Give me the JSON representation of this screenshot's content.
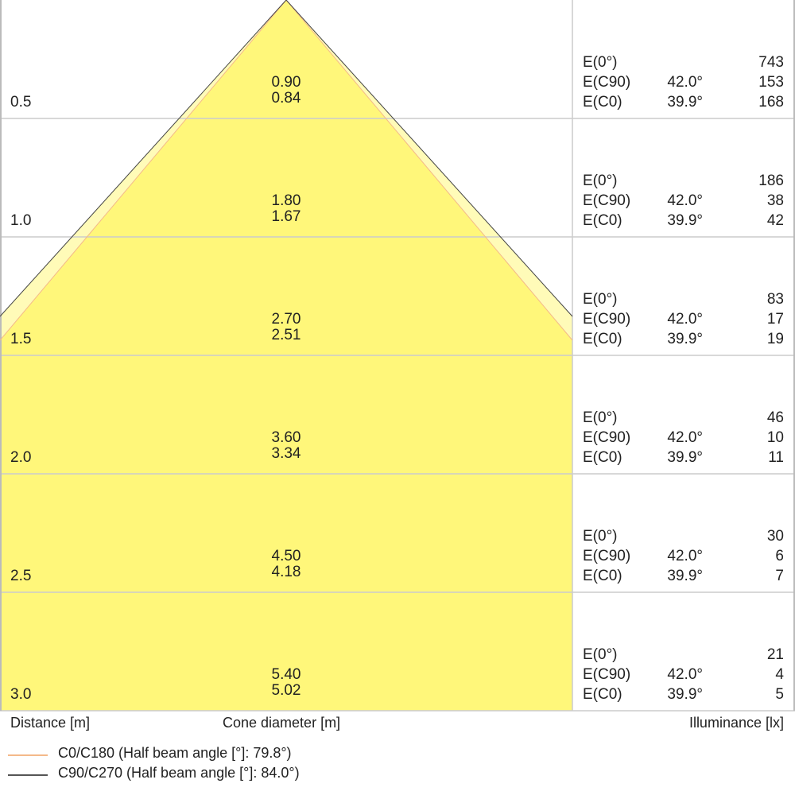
{
  "chart_data": {
    "type": "cone-diagram",
    "footer_labels": {
      "distance": "Distance [m]",
      "cone": "Cone diameter [m]",
      "illuminance": "Illuminance [lx]"
    },
    "legend": [
      {
        "label": "C0/C180 (Half beam angle [°]: 79.8°)",
        "color": "#f4b98a"
      },
      {
        "label": "C90/C270 (Half beam angle [°]: 84.0°)",
        "color": "#555555"
      }
    ],
    "colors": {
      "fill": "#fff77a",
      "band": "#fffbb8",
      "grid": "#cccccc"
    },
    "e_labels": [
      "E(0°)",
      "E(C90)",
      "E(C0)"
    ],
    "rows": [
      {
        "distance": "0.5",
        "d_c90": "0.90",
        "d_c0": "0.84",
        "angle_c90": "42.0°",
        "angle_c0": "39.9°",
        "e0": "743",
        "ec90": "153",
        "ec0": "168"
      },
      {
        "distance": "1.0",
        "d_c90": "1.80",
        "d_c0": "1.67",
        "angle_c90": "42.0°",
        "angle_c0": "39.9°",
        "e0": "186",
        "ec90": "38",
        "ec0": "42"
      },
      {
        "distance": "1.5",
        "d_c90": "2.70",
        "d_c0": "2.51",
        "angle_c90": "42.0°",
        "angle_c0": "39.9°",
        "e0": "83",
        "ec90": "17",
        "ec0": "19"
      },
      {
        "distance": "2.0",
        "d_c90": "3.60",
        "d_c0": "3.34",
        "angle_c90": "42.0°",
        "angle_c0": "39.9°",
        "e0": "46",
        "ec90": "10",
        "ec0": "11"
      },
      {
        "distance": "2.5",
        "d_c90": "4.50",
        "d_c0": "4.18",
        "angle_c90": "42.0°",
        "angle_c0": "39.9°",
        "e0": "30",
        "ec90": "6",
        "ec0": "7"
      },
      {
        "distance": "3.0",
        "d_c90": "5.40",
        "d_c0": "5.02",
        "angle_c90": "42.0°",
        "angle_c0": "39.9°",
        "e0": "21",
        "ec90": "4",
        "ec0": "5"
      }
    ]
  }
}
